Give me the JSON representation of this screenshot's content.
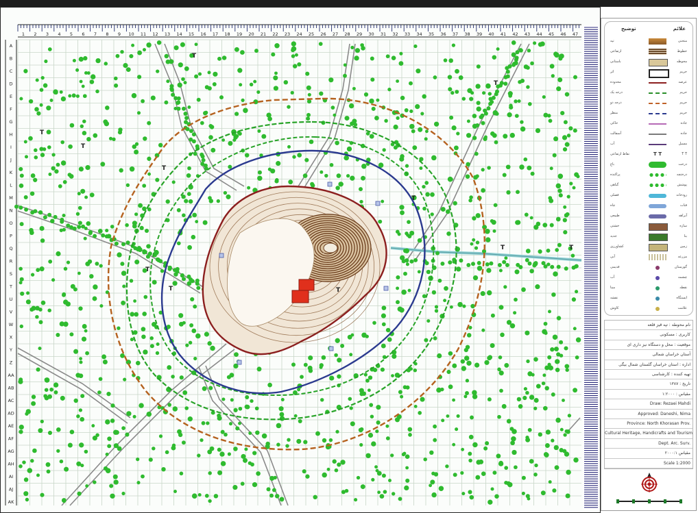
{
  "map": {
    "col_numbers": [
      "1",
      "2",
      "3",
      "4",
      "5",
      "6",
      "7",
      "8",
      "9",
      "10",
      "11",
      "12",
      "13",
      "14",
      "15",
      "16",
      "17",
      "18",
      "19",
      "20",
      "21",
      "22",
      "23",
      "24",
      "25",
      "26",
      "27",
      "28",
      "29",
      "30",
      "31",
      "32",
      "33",
      "34",
      "35",
      "36",
      "37",
      "38",
      "39",
      "40",
      "41",
      "42",
      "43",
      "44",
      "45",
      "46",
      "47"
    ],
    "row_letters": [
      "A",
      "B",
      "C",
      "D",
      "E",
      "F",
      "G",
      "H",
      "I",
      "J",
      "K",
      "L",
      "M",
      "N",
      "O",
      "P",
      "Q",
      "R",
      "S",
      "T",
      "U",
      "V",
      "W",
      "X",
      "Y",
      "Z",
      "AA",
      "AB",
      "AC",
      "AD",
      "AE",
      "AF",
      "AG",
      "AH",
      "AI",
      "AJ",
      "AK"
    ],
    "colors": {
      "grid": "#c9d6c9",
      "road": "#8a8a8a",
      "stream": "#8ccfd2",
      "tree": "#2fbb2f",
      "outer_buffer": "#b5621f",
      "green_buffer": "#27a327",
      "blue_buffer": "#2b3a8f",
      "site_boundary": "#8c1f1f",
      "contour": "#7a4a22",
      "structure": "#e0301c"
    },
    "hill_label": "۰"
  },
  "legend": {
    "title_right": "علائم",
    "title_left": "توضیح",
    "items": [
      {
        "symbol": "orange-band",
        "color": "#c98a3a",
        "right": "منحنی",
        "left": "تپه"
      },
      {
        "symbol": "contour-band",
        "color": "#6b4a2a",
        "right": "خطوط",
        "left": "ارتفاعی"
      },
      {
        "symbol": "box",
        "color": "#d9c89a",
        "right": "محوطه",
        "left": "باستانی"
      },
      {
        "symbol": "box-white",
        "color": "#222222",
        "right": "حریم",
        "left": "اثر"
      },
      {
        "symbol": "line",
        "color": "#8c1f1f",
        "right": "عرصه",
        "left": "محدوده"
      },
      {
        "symbol": "dash",
        "color": "#2a8f2a",
        "right": "حریم",
        "left": "درجه یک"
      },
      {
        "symbol": "dash",
        "color": "#c0632a",
        "right": "حریم",
        "left": "درجه دو"
      },
      {
        "symbol": "dash",
        "color": "#2b3a8f",
        "right": "حریم",
        "left": "منظر"
      },
      {
        "symbol": "line",
        "color": "#b56ab5",
        "right": "جاده",
        "left": "خاکی"
      },
      {
        "symbol": "line",
        "color": "#7a7a7a",
        "right": "جاده",
        "left": "آسفالت"
      },
      {
        "symbol": "line",
        "color": "#5b3b7a",
        "right": "مسیل",
        "left": "آب"
      },
      {
        "symbol": "text",
        "color": "#333333",
        "right": "T T",
        "left": "نقاط ارتفاعی"
      },
      {
        "symbol": "pill",
        "color": "#2fbb2f",
        "right": "درخت",
        "left": "باغ"
      },
      {
        "symbol": "dots",
        "color": "#2fbb2f",
        "right": "درختچه",
        "left": "پراکنده"
      },
      {
        "symbol": "dots2",
        "color": "#2fbb2f",
        "right": "پوشش",
        "left": "گیاهی"
      },
      {
        "symbol": "wave",
        "color": "#4fb7d8",
        "right": "رودخانه",
        "left": "فصلی"
      },
      {
        "symbol": "wave2",
        "color": "#7fa6d8",
        "right": "قنات",
        "left": "چاه"
      },
      {
        "symbol": "wave3",
        "color": "#6a6aa8",
        "right": "آبراهه",
        "left": "طبیعی"
      },
      {
        "symbol": "hatch",
        "color": "#8a5a3a",
        "right": "سازه",
        "left": "خشتی"
      },
      {
        "symbol": "sq",
        "color": "#3a7a2a",
        "right": "بنا",
        "left": "جدید"
      },
      {
        "symbol": "sq2",
        "color": "#c4b47a",
        "right": "زمین",
        "left": "کشاورزی"
      },
      {
        "symbol": "lines3",
        "color": "#c8c09a",
        "right": "مزرعه",
        "left": "آبی"
      },
      {
        "symbol": "small",
        "color": "#8a3a6a",
        "right": "گورستان",
        "left": "قدیمی"
      },
      {
        "symbol": "small2",
        "color": "#5a4aa8",
        "right": "چشمه",
        "left": "آب"
      },
      {
        "symbol": "tiny",
        "color": "#2a9a6a",
        "right": "نقطه",
        "left": "مبنا"
      },
      {
        "symbol": "tiny2",
        "color": "#3a8aa8",
        "right": "ایستگاه",
        "left": "نقشه"
      },
      {
        "symbol": "tiny3",
        "color": "#c8b04a",
        "right": "علامت",
        "left": "کاوش"
      }
    ]
  },
  "title_block": {
    "rows": [
      "نام محوطه : تپه قیز قلعه",
      "کاربری : مسکونی",
      "موقعیت : محل و دستگاه نیز داری ای",
      "آستان خراسان شمالی",
      "اداره : استان خراسان گلستان شمال بیگی",
      "تهیه کننده : کارشناسی",
      "تاریخ : ۱۳۸۷",
      "مقیاس : ۱:۲۰۰۰",
      "Draw: Rezaei Mahdi",
      "Approved: Daneshi, Nima",
      "Province: North Khorasan Prov.",
      "Cultural Heritage, Handicrafts and Tourism",
      "Dept.   Arc. Surv.",
      "مقیاس ۲۰۰۰:۱",
      "Scale   1:2000"
    ]
  }
}
